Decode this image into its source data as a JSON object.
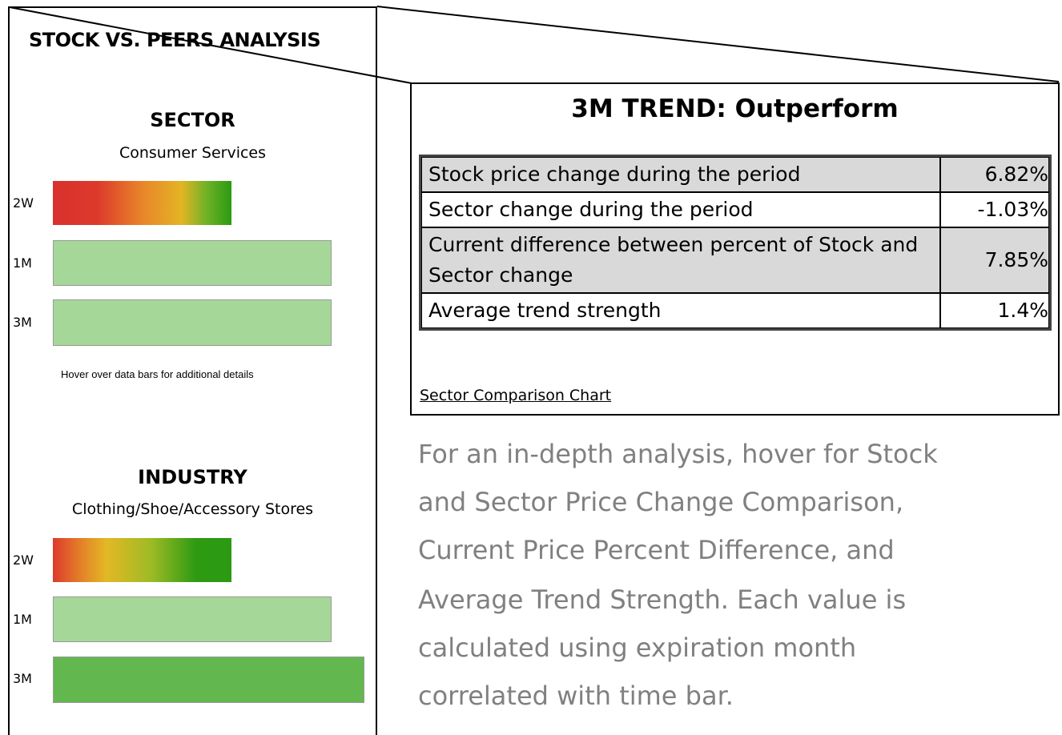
{
  "left_panel": {
    "title": "STOCK VS. PEERS ANALYSIS",
    "sector": {
      "heading": "SECTOR",
      "name": "Consumer Services",
      "bars": [
        "2W",
        "1M",
        "3M"
      ],
      "hint": "Hover over data bars for additional details"
    },
    "industry": {
      "heading": "INDUSTRY",
      "name": "Clothing/Shoe/Accessory Stores",
      "bars": [
        "2W",
        "1M",
        "3M"
      ]
    }
  },
  "callout": {
    "title": "3M TREND: Outperform",
    "table": {
      "rows": [
        [
          "Stock price change during the period",
          "6.82%"
        ],
        [
          "Sector change during the period",
          "-1.03%"
        ],
        [
          "Current difference between percent of Stock and Sector change",
          "7.85%"
        ],
        [
          "Average trend strength",
          "1.4%"
        ]
      ]
    },
    "link": "Sector Comparison Chart"
  },
  "description": {
    "lines": [
      "For an in-depth analysis, hover for Stock",
      "and Sector Price Change Comparison,",
      "Current Price Percent Difference, and",
      "Average Trend Strength. Each value is",
      "calculated using expiration month",
      "correlated with time bar."
    ]
  }
}
